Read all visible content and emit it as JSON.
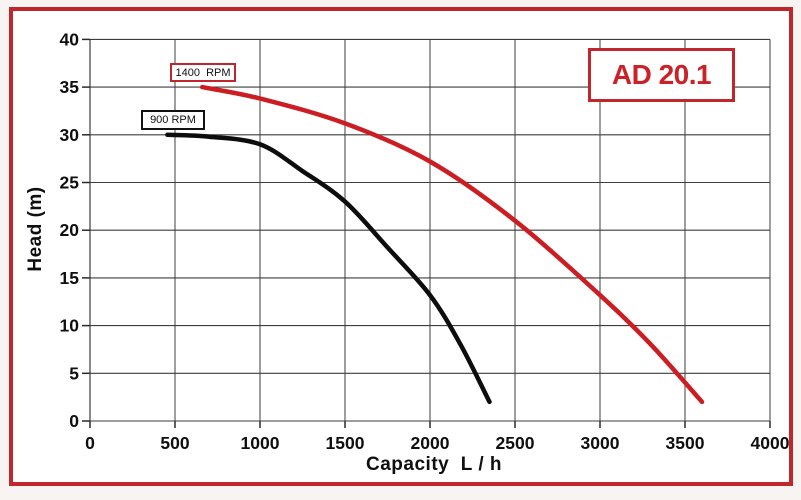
{
  "page": {
    "background": "#f8f4f1",
    "frame_border": "#c0262b",
    "chart_background": "#ffffff"
  },
  "badge": {
    "label": "AD 20.1",
    "text_color": "#cc2127",
    "border_color": "#c0262b"
  },
  "colors": {
    "grid_horizontal": "#3d3d3d",
    "grid_vertical": "#5f5f5f",
    "y_axis_line": "#8a8a8a",
    "tick": "#2a2a2a",
    "tick_text": "#0f0f0f"
  },
  "chart_data": {
    "type": "line",
    "title": "AD 20.1",
    "xlabel": "Capacity  L / h",
    "ylabel": "Head (m)",
    "xlim": [
      0,
      4000
    ],
    "ylim": [
      0,
      40
    ],
    "x_ticks": [
      0,
      500,
      1000,
      1500,
      2000,
      2500,
      3000,
      3500,
      4000
    ],
    "y_ticks": [
      0,
      5,
      10,
      15,
      20,
      25,
      30,
      35,
      40
    ],
    "x_tick_labels": [
      "0",
      "500",
      "1000",
      "1500",
      "2000",
      "2500",
      "3000",
      "3500",
      "4000"
    ],
    "y_tick_labels": [
      "0",
      "5",
      "10",
      "15",
      "20",
      "25",
      "30",
      "35",
      "40"
    ],
    "grid": true,
    "legend_position": "boxes-at-curve-start",
    "series": [
      {
        "name": "1400 RPM",
        "label": "1400  RPM",
        "color": "#cc1d23",
        "points": [
          [
            660,
            35.0
          ],
          [
            1000,
            33.8
          ],
          [
            1500,
            31.2
          ],
          [
            2000,
            27.2
          ],
          [
            2500,
            21.0
          ],
          [
            3000,
            13.2
          ],
          [
            3300,
            8.0
          ],
          [
            3600,
            2.0
          ]
        ]
      },
      {
        "name": "900 RPM",
        "label": "900 RPM",
        "color": "#0d0d0d",
        "points": [
          [
            455,
            30.0
          ],
          [
            700,
            29.8
          ],
          [
            1000,
            29.0
          ],
          [
            1250,
            26.2
          ],
          [
            1500,
            23.0
          ],
          [
            1750,
            18.2
          ],
          [
            2000,
            13.2
          ],
          [
            2180,
            8.0
          ],
          [
            2350,
            2.0
          ]
        ]
      }
    ]
  }
}
